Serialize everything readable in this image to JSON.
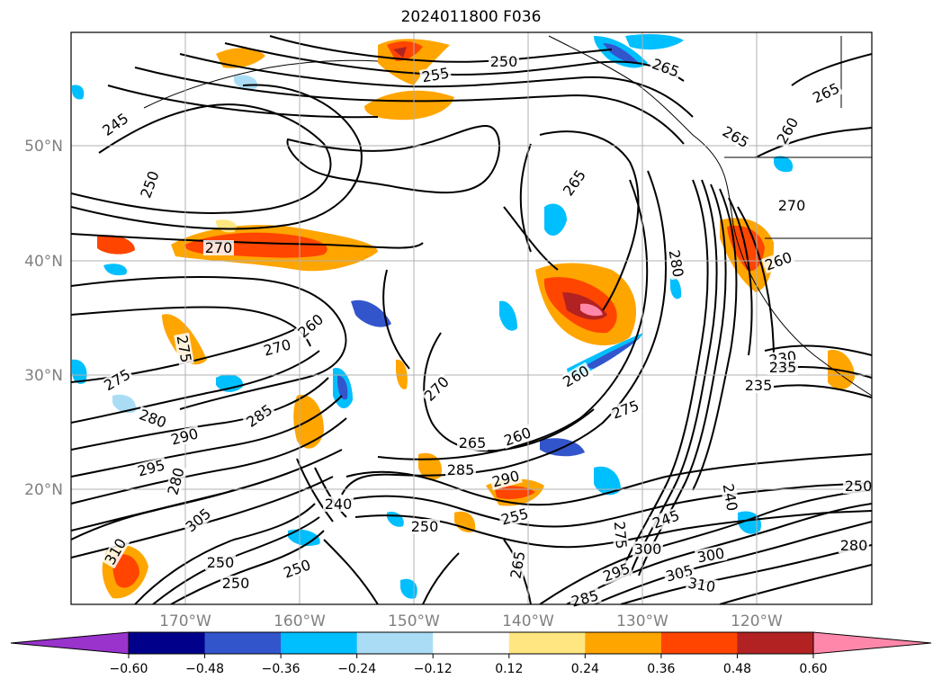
{
  "title": "2024011800 F036",
  "map": {
    "lat_labels": [
      "50°N",
      "40°N",
      "30°N",
      "20°N"
    ],
    "lon_labels": [
      "170°W",
      "160°W",
      "150°W",
      "140°W",
      "130°W",
      "120°W"
    ],
    "gridline_color": "#b0b0b0"
  },
  "contour_labels": [
    "250",
    "255",
    "245",
    "250",
    "270",
    "270",
    "260",
    "275",
    "275",
    "280",
    "290",
    "295",
    "280",
    "285",
    "270",
    "260",
    "265",
    "285",
    "290",
    "250",
    "250",
    "255",
    "265",
    "265",
    "265",
    "260",
    "270",
    "260",
    "280",
    "275",
    "265",
    "245",
    "240",
    "300",
    "305",
    "310",
    "230",
    "235",
    "235",
    "250",
    "250",
    "260",
    "265",
    "295",
    "280",
    "250",
    "310",
    "305",
    "300",
    "285",
    "275",
    "240"
  ],
  "colorbar": {
    "ticks": [
      "−0.60",
      "−0.48",
      "−0.36",
      "−0.24",
      "−0.12",
      "0.12",
      "0.24",
      "0.36",
      "0.48",
      "0.60"
    ],
    "colors": [
      "#9933cc",
      "#00008b",
      "#3355cc",
      "#00bfff",
      "#aaddf5",
      "#ffffff",
      "#ffe680",
      "#ffa500",
      "#ff4500",
      "#b22222",
      "#ff88aa"
    ],
    "extend": "both"
  }
}
